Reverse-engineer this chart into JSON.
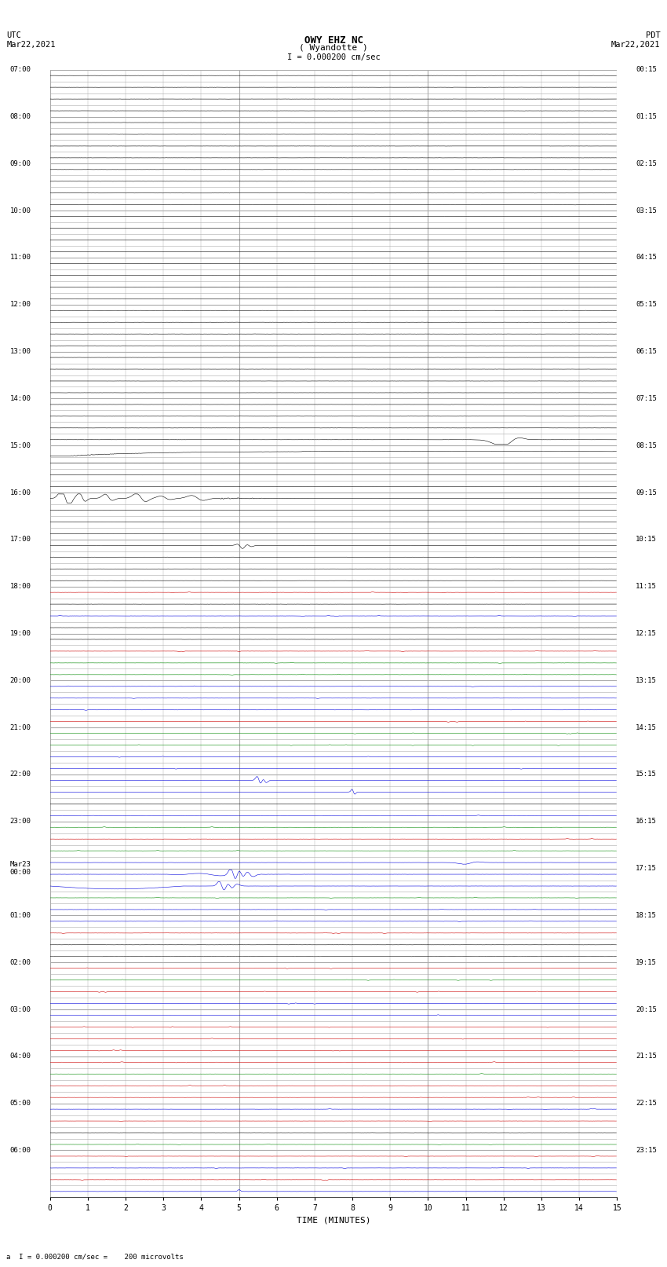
{
  "title_line1": "OWY EHZ NC",
  "title_line2": "( Wyandotte )",
  "scale_label": "I = 0.000200 cm/sec",
  "left_label": "UTC\nMar22,2021",
  "right_label": "PDT\nMar22,2021",
  "bottom_label": "a  I = 0.000200 cm/sec =    200 microvolts",
  "xlabel": "TIME (MINUTES)",
  "left_times": [
    "07:00",
    "08:00",
    "09:00",
    "10:00",
    "11:00",
    "12:00",
    "13:00",
    "14:00",
    "15:00",
    "16:00",
    "17:00",
    "18:00",
    "19:00",
    "20:00",
    "21:00",
    "22:00",
    "23:00",
    "Mar23\n00:00",
    "01:00",
    "02:00",
    "03:00",
    "04:00",
    "05:00",
    "06:00"
  ],
  "right_times": [
    "00:15",
    "01:15",
    "02:15",
    "03:15",
    "04:15",
    "05:15",
    "06:15",
    "07:15",
    "08:15",
    "09:15",
    "10:15",
    "11:15",
    "12:15",
    "13:15",
    "14:15",
    "15:15",
    "16:15",
    "17:15",
    "18:15",
    "19:15",
    "20:15",
    "21:15",
    "22:15",
    "23:15"
  ],
  "n_rows": 96,
  "major_rows": 24,
  "subrows_per_hour": 4,
  "minutes_per_row": 15,
  "bg_color": "#ffffff",
  "grid_color": "#aaaaaa",
  "major_grid_color": "#000000",
  "trace_color_black": "#000000",
  "trace_color_blue": "#0000dd",
  "trace_color_red": "#cc0000",
  "trace_color_green": "#008800"
}
